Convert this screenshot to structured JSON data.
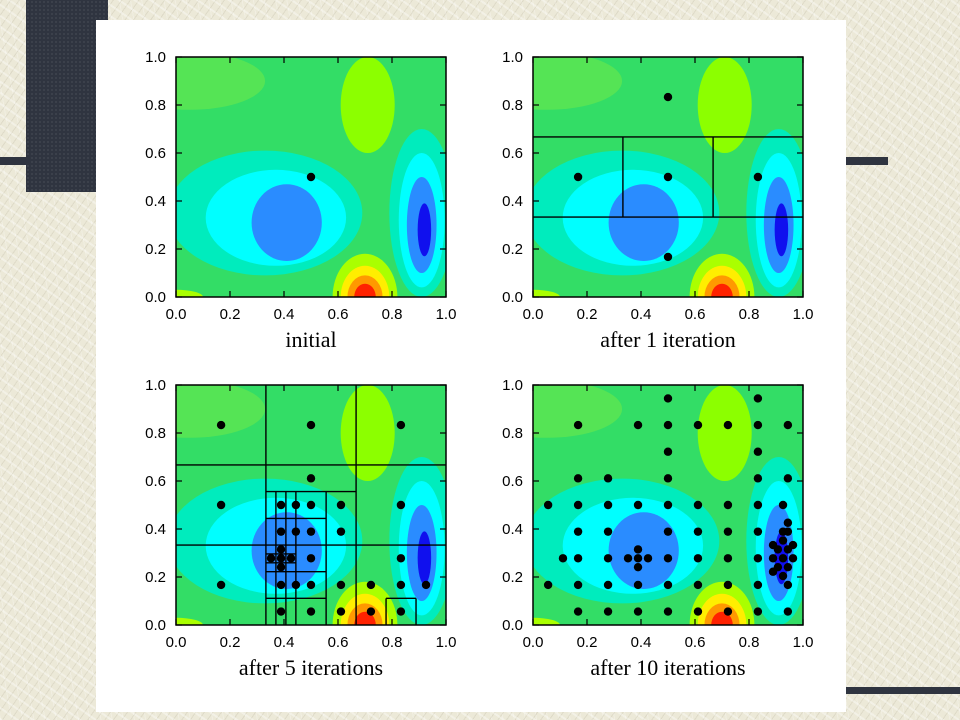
{
  "chart_data": [
    {
      "type": "contour",
      "xlabel": "initial",
      "xlim": [
        0.0,
        1.0
      ],
      "ylim": [
        0.0,
        1.0
      ],
      "xticks": [
        "0.0",
        "0.2",
        "0.4",
        "0.6",
        "0.8",
        "1.0"
      ],
      "yticks": [
        "0.0",
        "0.2",
        "0.4",
        "0.6",
        "0.8",
        "1.0"
      ],
      "grid_lines": [],
      "points": [
        [
          0.5,
          0.5
        ]
      ]
    },
    {
      "type": "contour",
      "xlabel": "after 1 iteration",
      "xlim": [
        0.0,
        1.0
      ],
      "ylim": [
        0.0,
        1.0
      ],
      "xticks": [
        "0.0",
        "0.2",
        "0.4",
        "0.6",
        "0.8",
        "1.0"
      ],
      "yticks": [
        "0.0",
        "0.2",
        "0.4",
        "0.6",
        "0.8",
        "1.0"
      ],
      "grid_lines": [
        [
          0.0,
          0.333,
          1.0,
          0.333
        ],
        [
          0.0,
          0.667,
          1.0,
          0.667
        ],
        [
          0.333,
          0.333,
          0.333,
          0.667
        ],
        [
          0.667,
          0.333,
          0.667,
          0.667
        ]
      ],
      "points": [
        [
          0.5,
          0.833
        ],
        [
          0.167,
          0.5
        ],
        [
          0.5,
          0.5
        ],
        [
          0.833,
          0.5
        ],
        [
          0.5,
          0.167
        ]
      ]
    },
    {
      "type": "contour",
      "xlabel": "after 5 iterations",
      "xlim": [
        0.0,
        1.0
      ],
      "ylim": [
        0.0,
        1.0
      ],
      "xticks": [
        "0.0",
        "0.2",
        "0.4",
        "0.6",
        "0.8",
        "1.0"
      ],
      "yticks": [
        "0.0",
        "0.2",
        "0.4",
        "0.6",
        "0.8",
        "1.0"
      ],
      "grid_lines": [
        [
          0.0,
          0.333,
          1.0,
          0.333
        ],
        [
          0.0,
          0.667,
          1.0,
          0.667
        ],
        [
          0.333,
          0.0,
          0.333,
          1.0
        ],
        [
          0.667,
          0.0,
          0.667,
          1.0
        ],
        [
          0.333,
          0.556,
          0.667,
          0.556
        ],
        [
          0.333,
          0.444,
          0.556,
          0.444
        ],
        [
          0.333,
          0.222,
          0.556,
          0.222
        ],
        [
          0.333,
          0.111,
          0.556,
          0.111
        ],
        [
          0.444,
          0.0,
          0.444,
          0.556
        ],
        [
          0.556,
          0.0,
          0.556,
          0.556
        ],
        [
          0.37,
          0.0,
          0.37,
          0.556
        ],
        [
          0.407,
          0.0,
          0.407,
          0.556
        ],
        [
          0.333,
          0.259,
          0.444,
          0.259
        ],
        [
          0.333,
          0.296,
          0.444,
          0.296
        ],
        [
          0.778,
          0.0,
          0.778,
          0.111
        ],
        [
          0.889,
          0.0,
          0.889,
          0.111
        ],
        [
          0.778,
          0.111,
          0.889,
          0.111
        ]
      ],
      "points": [
        [
          0.167,
          0.833
        ],
        [
          0.5,
          0.833
        ],
        [
          0.833,
          0.833
        ],
        [
          0.167,
          0.5
        ],
        [
          0.833,
          0.5
        ],
        [
          0.167,
          0.167
        ],
        [
          0.833,
          0.167
        ],
        [
          0.5,
          0.611
        ],
        [
          0.389,
          0.5
        ],
        [
          0.444,
          0.5
        ],
        [
          0.5,
          0.5
        ],
        [
          0.611,
          0.5
        ],
        [
          0.389,
          0.389
        ],
        [
          0.444,
          0.389
        ],
        [
          0.5,
          0.389
        ],
        [
          0.611,
          0.389
        ],
        [
          0.352,
          0.278
        ],
        [
          0.389,
          0.278
        ],
        [
          0.426,
          0.278
        ],
        [
          0.389,
          0.315
        ],
        [
          0.389,
          0.241
        ],
        [
          0.5,
          0.278
        ],
        [
          0.444,
          0.167
        ],
        [
          0.5,
          0.167
        ],
        [
          0.389,
          0.167
        ],
        [
          0.389,
          0.056
        ],
        [
          0.5,
          0.056
        ],
        [
          0.611,
          0.167
        ],
        [
          0.611,
          0.056
        ],
        [
          0.722,
          0.167
        ],
        [
          0.722,
          0.056
        ],
        [
          0.833,
          0.278
        ],
        [
          0.833,
          0.056
        ],
        [
          0.926,
          0.167
        ]
      ]
    },
    {
      "type": "contour",
      "xlabel": "after 10 iterations",
      "xlim": [
        0.0,
        1.0
      ],
      "ylim": [
        0.0,
        1.0
      ],
      "xticks": [
        "0.0",
        "0.2",
        "0.4",
        "0.6",
        "0.8",
        "1.0"
      ],
      "yticks": [
        "0.0",
        "0.2",
        "0.4",
        "0.6",
        "0.8",
        "1.0"
      ],
      "grid_lines": [],
      "points": [
        [
          0.5,
          0.944
        ],
        [
          0.833,
          0.944
        ],
        [
          0.167,
          0.833
        ],
        [
          0.389,
          0.833
        ],
        [
          0.5,
          0.833
        ],
        [
          0.611,
          0.833
        ],
        [
          0.722,
          0.833
        ],
        [
          0.833,
          0.833
        ],
        [
          0.944,
          0.833
        ],
        [
          0.5,
          0.722
        ],
        [
          0.833,
          0.722
        ],
        [
          0.167,
          0.611
        ],
        [
          0.278,
          0.611
        ],
        [
          0.5,
          0.611
        ],
        [
          0.833,
          0.611
        ],
        [
          0.944,
          0.611
        ],
        [
          0.056,
          0.5
        ],
        [
          0.167,
          0.5
        ],
        [
          0.278,
          0.5
        ],
        [
          0.389,
          0.5
        ],
        [
          0.5,
          0.5
        ],
        [
          0.611,
          0.5
        ],
        [
          0.722,
          0.5
        ],
        [
          0.833,
          0.5
        ],
        [
          0.926,
          0.5
        ],
        [
          0.167,
          0.389
        ],
        [
          0.278,
          0.389
        ],
        [
          0.5,
          0.389
        ],
        [
          0.611,
          0.389
        ],
        [
          0.722,
          0.389
        ],
        [
          0.833,
          0.389
        ],
        [
          0.944,
          0.389
        ],
        [
          0.111,
          0.278
        ],
        [
          0.167,
          0.278
        ],
        [
          0.278,
          0.278
        ],
        [
          0.352,
          0.278
        ],
        [
          0.389,
          0.278
        ],
        [
          0.426,
          0.278
        ],
        [
          0.389,
          0.315
        ],
        [
          0.389,
          0.241
        ],
        [
          0.5,
          0.278
        ],
        [
          0.611,
          0.278
        ],
        [
          0.722,
          0.278
        ],
        [
          0.833,
          0.278
        ],
        [
          0.056,
          0.167
        ],
        [
          0.167,
          0.167
        ],
        [
          0.278,
          0.167
        ],
        [
          0.389,
          0.167
        ],
        [
          0.5,
          0.167
        ],
        [
          0.611,
          0.167
        ],
        [
          0.722,
          0.167
        ],
        [
          0.833,
          0.167
        ],
        [
          0.944,
          0.167
        ],
        [
          0.167,
          0.056
        ],
        [
          0.278,
          0.056
        ],
        [
          0.389,
          0.056
        ],
        [
          0.5,
          0.056
        ],
        [
          0.611,
          0.056
        ],
        [
          0.722,
          0.056
        ],
        [
          0.833,
          0.056
        ],
        [
          0.944,
          0.056
        ],
        [
          0.889,
          0.278
        ],
        [
          0.926,
          0.278
        ],
        [
          0.963,
          0.278
        ],
        [
          0.907,
          0.315
        ],
        [
          0.907,
          0.241
        ],
        [
          0.944,
          0.315
        ],
        [
          0.944,
          0.241
        ],
        [
          0.926,
          0.352
        ],
        [
          0.926,
          0.204
        ],
        [
          0.889,
          0.222
        ],
        [
          0.889,
          0.333
        ],
        [
          0.963,
          0.333
        ],
        [
          0.926,
          0.389
        ],
        [
          0.944,
          0.426
        ]
      ]
    }
  ]
}
